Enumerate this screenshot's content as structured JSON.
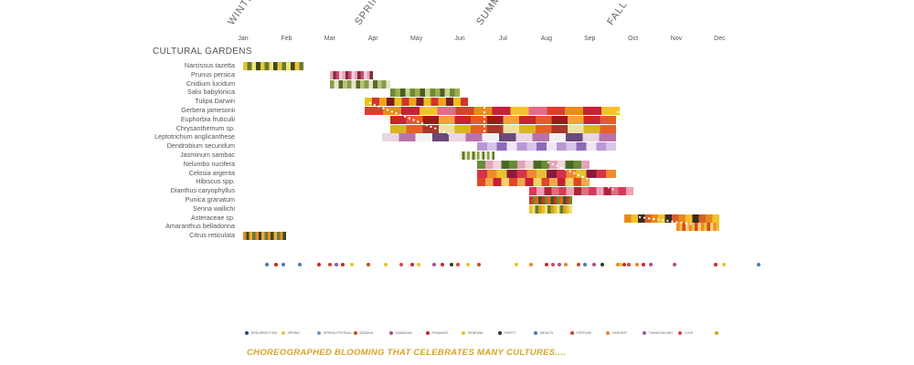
{
  "seasons": [
    {
      "id": "winter",
      "label": "WINTER"
    },
    {
      "id": "spring",
      "label": "SPRING"
    },
    {
      "id": "summer",
      "label": "SUMMER"
    },
    {
      "id": "fall",
      "label": "FALL"
    }
  ],
  "months": [
    "Jan",
    "Feb",
    "Mar",
    "Apr",
    "May",
    "Jun",
    "Jul",
    "Aug",
    "Sep",
    "Oct",
    "Nov",
    "Dec"
  ],
  "section_title": "CULTURAL GARDENS",
  "plants": [
    {
      "name": "Narcissus tazetta",
      "start": 1.0,
      "end": 2.4,
      "colors": [
        "#e8c33a",
        "#6a7a2c",
        "#f3e27a",
        "#3b4a1e"
      ]
    },
    {
      "name": "Prunus persica",
      "start": 3.0,
      "end": 4.0,
      "colors": [
        "#e7a2b8",
        "#7b2d3a",
        "#c94a6a",
        "#f5d0dc"
      ]
    },
    {
      "name": "Cnidium lucidum",
      "start": 3.0,
      "end": 4.4,
      "colors": [
        "#8a9a4a",
        "#e9e4c8",
        "#5a6a2a",
        "#b7c27a"
      ]
    },
    {
      "name": "Salix babylonica",
      "start": 4.4,
      "end": 6.0,
      "colors": [
        "#6f8a36",
        "#9ab04f",
        "#4a5e22",
        "#c8d48a"
      ]
    },
    {
      "name": "Tulipa Darwin",
      "start": 3.8,
      "end": 6.2,
      "colors": [
        "#e8c219",
        "#d6332a",
        "#f2a21a",
        "#7a1e1e"
      ]
    },
    {
      "name": "Gerbera jamesonii",
      "start": 3.8,
      "end": 9.7,
      "colors": [
        "#e23b2e",
        "#f0891e",
        "#c91f3a",
        "#f6c22a",
        "#e86a8a"
      ]
    },
    {
      "name": "Euphorbia fruticulii",
      "start": 4.4,
      "end": 9.6,
      "colors": [
        "#c7262b",
        "#e65a2a",
        "#9a1a1a",
        "#f2a23a"
      ]
    },
    {
      "name": "Chrysanthemum sp.",
      "start": 4.4,
      "end": 9.6,
      "colors": [
        "#d8b622",
        "#e6602a",
        "#a8382a",
        "#efe0a2"
      ]
    },
    {
      "name": "Leptotrichum anglicanthese",
      "start": 4.2,
      "end": 9.6,
      "colors": [
        "#e8d6e2",
        "#b874a8",
        "#f3f0f4",
        "#6a4a7a"
      ]
    },
    {
      "name": "Dendrobium secundum",
      "start": 6.4,
      "end": 9.6,
      "colors": [
        "#b898d6",
        "#d8c4ea",
        "#8f6ab8",
        "#f0e6f6"
      ]
    },
    {
      "name": "Jasminum sambac",
      "start": 6.0,
      "end": 6.8,
      "colors": [
        "#f4f0dc",
        "#5a7a2a",
        "#e8e4c0",
        "#8aa04a"
      ]
    },
    {
      "name": "Nelumbo nucifera",
      "start": 6.4,
      "end": 9.0,
      "colors": [
        "#6a8a3a",
        "#e6a2b4",
        "#f0d4dc",
        "#4a6a22"
      ]
    },
    {
      "name": "Celosia argenta",
      "start": 6.4,
      "end": 9.6,
      "colors": [
        "#d6334a",
        "#f08a2a",
        "#e8c22a",
        "#8a1a3a"
      ]
    },
    {
      "name": "Hibiscus spp.",
      "start": 6.4,
      "end": 9.0,
      "colors": [
        "#e0462a",
        "#f2a84a",
        "#c81e3a",
        "#f6d06a"
      ]
    },
    {
      "name": "Dianthus caryophyllus",
      "start": 7.6,
      "end": 10.0,
      "colors": [
        "#d83a5a",
        "#f0a2b4",
        "#b0223a",
        "#e86a7a"
      ]
    },
    {
      "name": "Punica granatum",
      "start": 7.6,
      "end": 8.6,
      "colors": [
        "#c8362a",
        "#6a8a2a",
        "#e6602a",
        "#3a5a1a"
      ]
    },
    {
      "name": "Senna wallichi",
      "start": 7.6,
      "end": 8.6,
      "colors": [
        "#e8c22a",
        "#f0e07a",
        "#6a7a2a",
        "#d6a21a"
      ]
    },
    {
      "name": "Asteraceae sp.",
      "start": 9.8,
      "end": 12.0,
      "colors": [
        "#e88a1a",
        "#f2c22a",
        "#3a2a1a",
        "#d6602a"
      ]
    },
    {
      "name": "Amaranthus belladonna",
      "start": 11.0,
      "end": 12.0,
      "colors": [
        "#f08a2a",
        "#e6c23a",
        "#d6462a",
        "#f6d06a"
      ]
    },
    {
      "name": "Citrus reticulata",
      "start": 1.0,
      "end": 2.0,
      "colors": [
        "#e8892a",
        "#3a4a22",
        "#f2a83a",
        "#6a7a3a"
      ]
    }
  ],
  "legend": [
    {
      "label": "RESURRECTION",
      "color": "#2a4a7a"
    },
    {
      "label": "SPRING",
      "color": "#e8c84a"
    },
    {
      "label": "SPRING FESTIVAL",
      "color": "#6a9ad6"
    },
    {
      "label": "BUDDHA",
      "color": "#d6462a"
    },
    {
      "label": "RAMADAN",
      "color": "#a8508a"
    },
    {
      "label": "ROMANCE",
      "color": "#c8262a"
    },
    {
      "label": "RENEWAL",
      "color": "#e8c22a"
    },
    {
      "label": "PURITY",
      "color": "#2a3a2a"
    },
    {
      "label": "WEALTH",
      "color": "#4a7ab8"
    },
    {
      "label": "FORTUNE",
      "color": "#c8462a"
    },
    {
      "label": "HARVEST",
      "color": "#e8862a"
    },
    {
      "label": "THANKSGIVING",
      "color": "#9a5aa8"
    },
    {
      "label": "LOVE",
      "color": "#d6465a"
    },
    {
      "label": "",
      "color": "#d6a21a"
    }
  ],
  "event_dots": [
    {
      "month": 1.55,
      "color": "#4a7ab8"
    },
    {
      "month": 1.75,
      "color": "#c8262a"
    },
    {
      "month": 1.92,
      "color": "#4a7ab8"
    },
    {
      "month": 2.3,
      "color": "#4a7ab8"
    },
    {
      "month": 2.75,
      "color": "#c8262a"
    },
    {
      "month": 3.0,
      "color": "#c8462a"
    },
    {
      "month": 3.15,
      "color": "#a8508a"
    },
    {
      "month": 3.3,
      "color": "#c8262a"
    },
    {
      "month": 3.5,
      "color": "#e8c22a"
    },
    {
      "month": 3.9,
      "color": "#c8462a"
    },
    {
      "month": 4.3,
      "color": "#e8c22a"
    },
    {
      "month": 4.65,
      "color": "#d6465a"
    },
    {
      "month": 4.9,
      "color": "#c8262a"
    },
    {
      "month": 5.05,
      "color": "#e8c22a"
    },
    {
      "month": 5.4,
      "color": "#a8508a"
    },
    {
      "month": 5.6,
      "color": "#c8262a"
    },
    {
      "month": 5.8,
      "color": "#2a3a2a"
    },
    {
      "month": 5.95,
      "color": "#d6462a"
    },
    {
      "month": 6.2,
      "color": "#e8c22a"
    },
    {
      "month": 6.45,
      "color": "#c8462a"
    },
    {
      "month": 7.3,
      "color": "#e8c22a"
    },
    {
      "month": 7.65,
      "color": "#e8862a"
    },
    {
      "month": 8.0,
      "color": "#c8262a"
    },
    {
      "month": 8.15,
      "color": "#d6465a"
    },
    {
      "month": 8.3,
      "color": "#a8508a"
    },
    {
      "month": 8.45,
      "color": "#e8862a"
    },
    {
      "month": 8.75,
      "color": "#c8462a"
    },
    {
      "month": 8.9,
      "color": "#4a7ab8"
    },
    {
      "month": 9.1,
      "color": "#a8508a"
    },
    {
      "month": 9.3,
      "color": "#2a3a2a"
    },
    {
      "month": 9.65,
      "color": "#e8862a"
    },
    {
      "month": 9.72,
      "color": "#e8c22a"
    },
    {
      "month": 9.8,
      "color": "#c8262a"
    },
    {
      "month": 9.9,
      "color": "#c8462a"
    },
    {
      "month": 10.1,
      "color": "#e8862a"
    },
    {
      "month": 10.25,
      "color": "#c8262a"
    },
    {
      "month": 10.4,
      "color": "#a8508a"
    },
    {
      "month": 10.95,
      "color": "#a8508a"
    },
    {
      "month": 11.9,
      "color": "#c8262a"
    },
    {
      "month": 12.1,
      "color": "#e8c22a"
    },
    {
      "month": 12.9,
      "color": "#4a7ab8"
    }
  ],
  "tagline": "CHOREOGRAPHED BLOOMING THAT CELEBRATES MANY CULTURES...."
}
